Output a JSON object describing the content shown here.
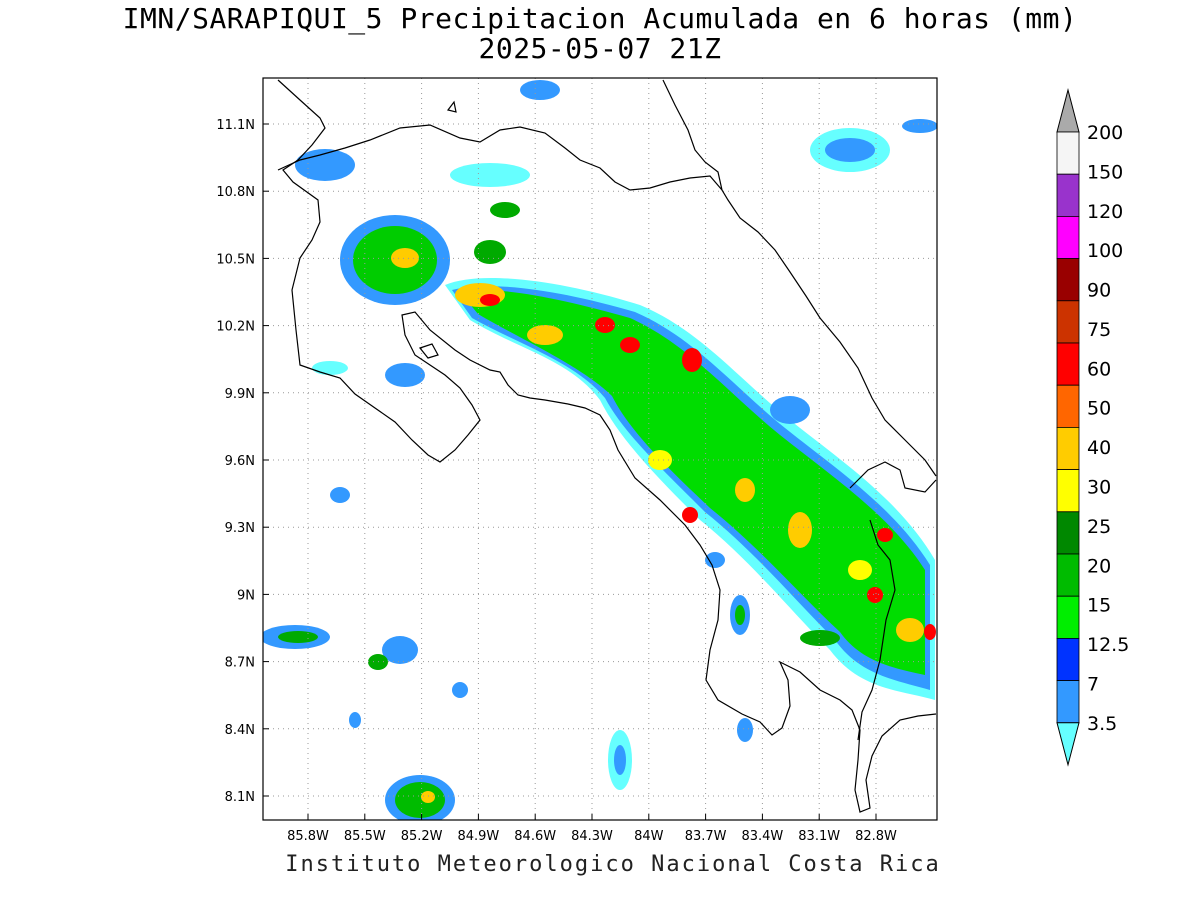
{
  "title": "IMN/SARAPIQUI_5 Precipitacion Acumulada en 6 horas (mm)",
  "subtitle": "2025-05-07 21Z",
  "footer": "Instituto Meteorologico Nacional Costa Rica",
  "map": {
    "lon_ticks": [
      "85.8W",
      "85.5W",
      "85.2W",
      "84.9W",
      "84.6W",
      "84.3W",
      "84W",
      "83.7W",
      "83.4W",
      "83.1W",
      "82.8W"
    ],
    "lat_ticks": [
      "11.1N",
      "10.8N",
      "10.5N",
      "10.2N",
      "9.9N",
      "9.6N",
      "9.3N",
      "9N",
      "8.7N",
      "8.4N",
      "8.1N"
    ]
  },
  "colorbar": {
    "labels": [
      "3.5",
      "7",
      "12.5",
      "15",
      "20",
      "25",
      "30",
      "40",
      "50",
      "60",
      "75",
      "90",
      "100",
      "120",
      "150",
      "200"
    ],
    "colors": [
      "#66ffff",
      "#3399ff",
      "#0033ff",
      "#00ee00",
      "#00bb00",
      "#008800",
      "#ffff00",
      "#ffcc00",
      "#ff6600",
      "#ff0000",
      "#cc3300",
      "#990000",
      "#ff00ff",
      "#9933cc",
      "#f5f5f5",
      "#aaaaaa"
    ]
  }
}
